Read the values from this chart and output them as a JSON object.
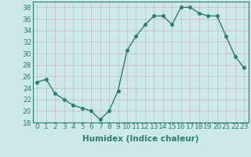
{
  "x": [
    0,
    1,
    2,
    3,
    4,
    5,
    6,
    7,
    8,
    9,
    10,
    11,
    12,
    13,
    14,
    15,
    16,
    17,
    18,
    19,
    20,
    21,
    22,
    23
  ],
  "y": [
    25,
    25.5,
    23,
    22,
    21,
    20.5,
    20,
    18.5,
    20,
    23.5,
    30.5,
    33,
    35,
    36.5,
    36.5,
    35,
    38,
    38,
    37,
    36.5,
    36.5,
    33,
    29.5,
    27.5
  ],
  "line_color": "#2d7d6e",
  "marker_color": "#2d7d6e",
  "bg_color": "#cce8ea",
  "grid_color": "#b0d0d4",
  "xlabel": "Humidex (Indice chaleur)",
  "ylim": [
    18,
    39
  ],
  "xlim": [
    -0.5,
    23.5
  ],
  "yticks": [
    18,
    20,
    22,
    24,
    26,
    28,
    30,
    32,
    34,
    36,
    38
  ],
  "xtick_labels": [
    "0",
    "1",
    "2",
    "3",
    "4",
    "5",
    "6",
    "7",
    "8",
    "9",
    "10",
    "11",
    "12",
    "13",
    "14",
    "15",
    "16",
    "17",
    "18",
    "19",
    "20",
    "21",
    "22",
    "23"
  ],
  "xlabel_fontsize": 7.5,
  "tick_fontsize": 6.5,
  "line_width": 1.0,
  "marker_size": 2.5
}
